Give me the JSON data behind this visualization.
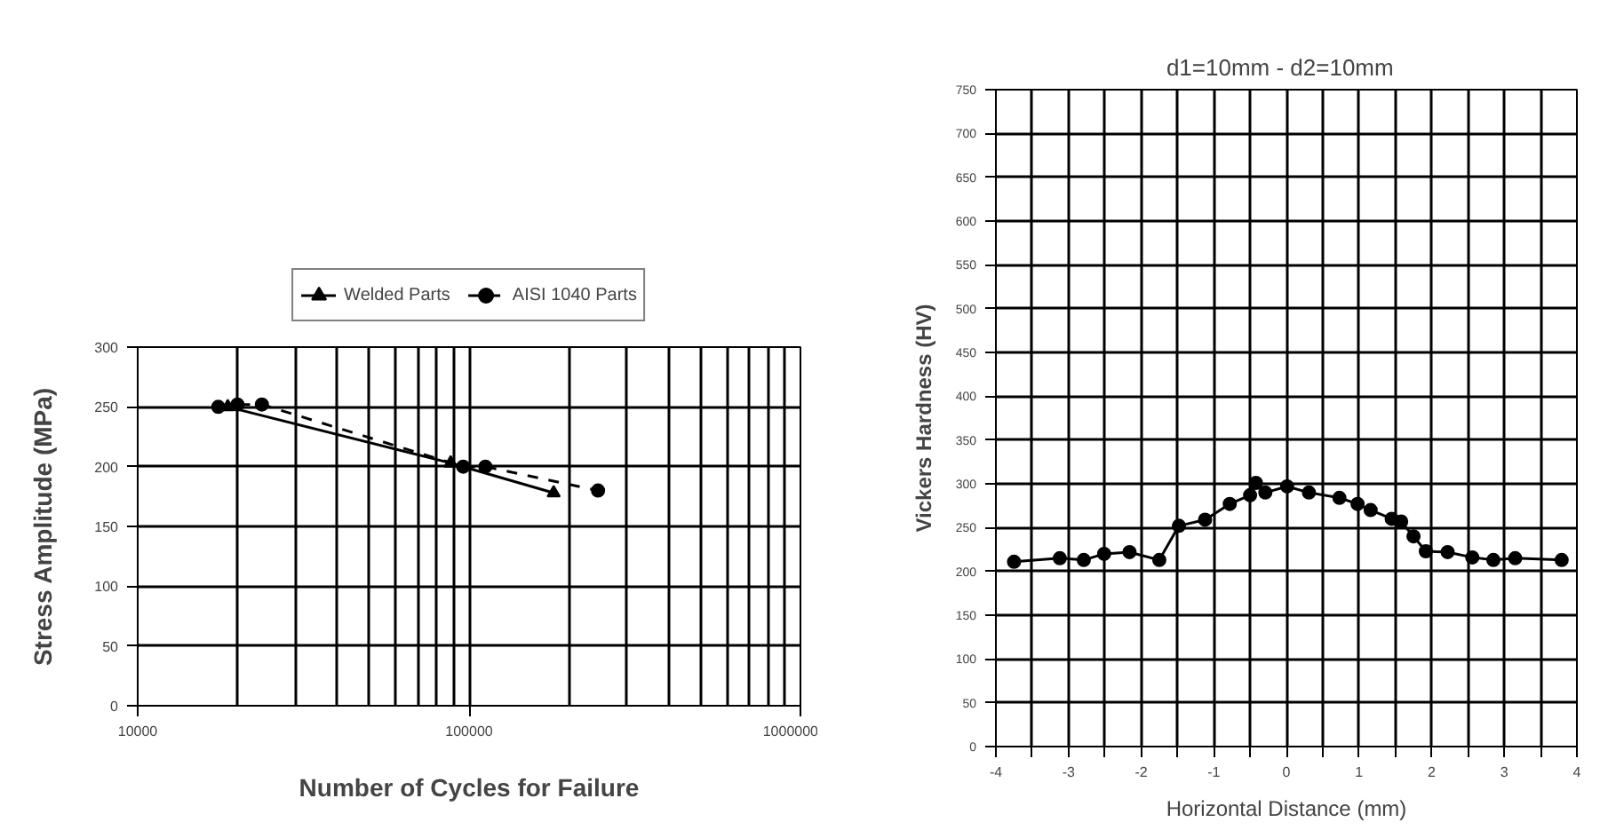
{
  "chart_data": [
    {
      "type": "line",
      "xlabel": "Number of Cycles for Failure",
      "ylabel": "Stress Amplitude (MPa)",
      "log": "x",
      "grid": true,
      "legend": "top",
      "xlim": [
        10000,
        1000000
      ],
      "xticks": [
        10000,
        100000,
        1000000
      ],
      "ylim": [
        0,
        300
      ],
      "yticks": [
        0,
        50,
        100,
        150,
        200,
        250,
        300
      ],
      "series": [
        {
          "name": "Welded Parts",
          "color": "#000000",
          "marker": "triangle",
          "line_style": "solid",
          "x": [
            18700,
            88000,
            180000
          ],
          "values": [
            250,
            203,
            178
          ]
        },
        {
          "name": "AISI 1040 Parts",
          "color": "#000000",
          "marker": "circle",
          "line_style": "dashed",
          "x": [
            17500,
            20000,
            23700,
            96000,
            112000,
            245000
          ],
          "values": [
            250,
            252,
            252,
            200,
            200,
            180
          ]
        }
      ]
    },
    {
      "type": "line",
      "title": "d1=10mm   - d2=10mm",
      "xlabel": "Horizontal Distance (mm)",
      "ylabel": "Vickers Hardness (HV)",
      "grid": true,
      "marker": "circle",
      "line_style": "solid",
      "xlim": [
        -4,
        4
      ],
      "xticks": [
        -4,
        {
          "value": -3.5,
          "label": null
        },
        -3,
        {
          "value": -2.5,
          "label": null
        },
        -2,
        {
          "value": -1.5,
          "label": null
        },
        -1,
        {
          "value": -0.5,
          "label": null
        },
        0,
        {
          "value": 0.5,
          "label": null
        },
        1,
        {
          "value": 1.5,
          "label": null
        },
        2,
        {
          "value": 2.5,
          "label": null
        },
        3,
        {
          "value": 3.5,
          "label": null
        },
        4
      ],
      "ylim": [
        0,
        750
      ],
      "yticks": [
        0,
        50,
        100,
        150,
        200,
        250,
        300,
        350,
        400,
        450,
        500,
        550,
        600,
        650,
        700,
        750
      ],
      "series": [
        {
          "color": "#000000",
          "x": [
            -3.75,
            -3.12,
            -2.79,
            -2.51,
            -2.16,
            -1.75,
            -1.48,
            -1.12,
            -0.78,
            -0.5,
            -0.42,
            -0.29,
            0.01,
            0.31,
            0.73,
            0.98,
            1.16,
            1.45,
            1.58,
            1.75,
            1.92,
            2.22,
            2.56,
            2.85,
            3.15,
            3.79
          ],
          "values": [
            211,
            215,
            213,
            220,
            222,
            213,
            252,
            259,
            277,
            287,
            301,
            290,
            297,
            290,
            284,
            277,
            270,
            260,
            257,
            240,
            223,
            222,
            216,
            213,
            215,
            213
          ]
        }
      ]
    }
  ]
}
